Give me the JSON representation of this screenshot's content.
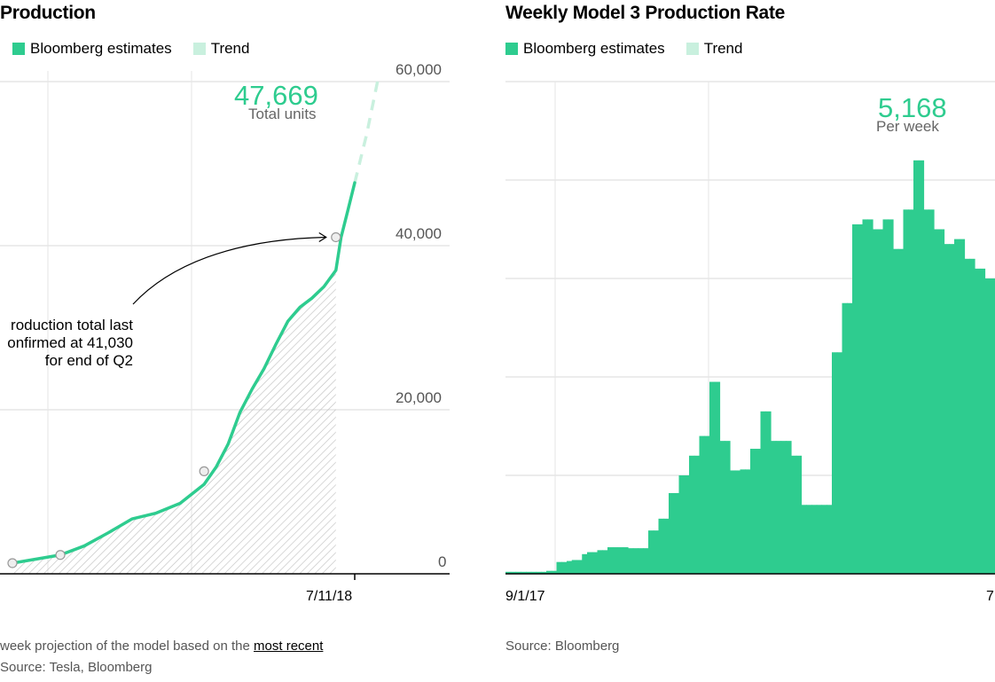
{
  "left_panel": {
    "title": "Production",
    "legend": [
      "Bloomberg estimates",
      "Trend"
    ],
    "big_value": "47,669",
    "big_unit": "Total units",
    "annotation_lines": [
      "roduction total last",
      "onfirmed at 41,030",
      "for end of Q2"
    ],
    "note_prefix": " week projection of the model based on the ",
    "note_link": "most recent",
    "source": "Source: Tesla, Bloomberg"
  },
  "right_panel": {
    "title": "Weekly Model 3 Production Rate",
    "legend": [
      "Bloomberg estimates",
      "Trend"
    ],
    "big_value": "5,168",
    "big_unit": "Per week",
    "source": "Source: Bloomberg",
    "x_tick_left": "9/1/17",
    "x_tick_right": "7"
  },
  "colors": {
    "estimate": "#2ecc8f",
    "trend": "#c9f0de",
    "grid": "#d9d9d9",
    "hatch": "#bdbdbd"
  },
  "chart_data": [
    {
      "type": "line",
      "title": "Production",
      "legend_entries": [
        "Bloomberg estimates",
        "Trend"
      ],
      "y_ticks": [
        "60,000",
        "40,000",
        "20,000",
        "0"
      ],
      "y_tick_values": [
        60000,
        40000,
        20000,
        0
      ],
      "ylim": [
        0,
        60000
      ],
      "x_tick_labels": [
        "7/11/18"
      ],
      "series": [
        {
          "name": "Bloomberg estimates",
          "x": [
            "2017-12-23",
            "2018-01-06",
            "2018-01-20",
            "2018-02-03",
            "2018-02-17",
            "2018-03-03",
            "2018-03-17",
            "2018-03-31",
            "2018-04-14",
            "2018-04-21",
            "2018-04-28",
            "2018-05-05",
            "2018-05-12",
            "2018-05-19",
            "2018-05-26",
            "2018-06-02",
            "2018-06-09",
            "2018-06-16",
            "2018-06-23",
            "2018-06-30",
            "2018-07-03",
            "2018-07-07",
            "2018-07-11"
          ],
          "y": [
            1300,
            1800,
            2300,
            3400,
            5000,
            6700,
            7400,
            8600,
            10900,
            13000,
            15800,
            19700,
            22500,
            25000,
            28000,
            30800,
            32500,
            33600,
            35000,
            37000,
            41000,
            44300,
            47669
          ]
        },
        {
          "name": "Trend",
          "x": [
            "2018-07-11",
            "2018-07-18",
            "2018-07-25"
          ],
          "y": [
            47669,
            53600,
            60700
          ]
        }
      ],
      "markers": [
        {
          "x": "2017-12-23",
          "y": 1300
        },
        {
          "x": "2018-01-20",
          "y": 2300
        },
        {
          "x": "2018-04-14",
          "y": 12500
        },
        {
          "x": "2018-06-30",
          "y": 41030
        }
      ],
      "callout": {
        "value": "47,669",
        "unit": "Total units"
      },
      "annotation": "roduction total last onfirmed at 41,030 for end of Q2"
    },
    {
      "type": "bar",
      "title": "Weekly Model 3 Production Rate",
      "legend_entries": [
        "Bloomberg estimates",
        "Trend"
      ],
      "x_tick_labels": [
        "9/1/17",
        "7"
      ],
      "ylim": [
        0,
        5000
      ],
      "series": [
        {
          "name": "Bloomberg estimates",
          "values": [
            20,
            20,
            20,
            20,
            20,
            20,
            20,
            20,
            30,
            30,
            120,
            120,
            130,
            140,
            140,
            200,
            220,
            220,
            240,
            240,
            270,
            270,
            270,
            270,
            260,
            260,
            260,
            260,
            440,
            440,
            560,
            560,
            820,
            820,
            1000,
            1000,
            1200,
            1200,
            1400,
            1400,
            1950,
            1950,
            1350,
            1350,
            1050,
            1050,
            1060,
            1060,
            1270,
            1270,
            1650,
            1650,
            1350,
            1350,
            1350,
            1350,
            1200,
            1200,
            700,
            700,
            700,
            700,
            700,
            700,
            2250,
            2250,
            2750,
            2750,
            3550,
            3550,
            3600,
            3600,
            3500,
            3500,
            3600,
            3600,
            3300,
            3300,
            3700,
            3700,
            4200,
            4200,
            3700,
            3700,
            3500,
            3500,
            3350,
            3350,
            3400,
            3400,
            3200,
            3200,
            3100,
            3100,
            3000,
            3000
          ]
        }
      ],
      "callout": {
        "value": "5,168",
        "unit": "Per week"
      }
    }
  ]
}
